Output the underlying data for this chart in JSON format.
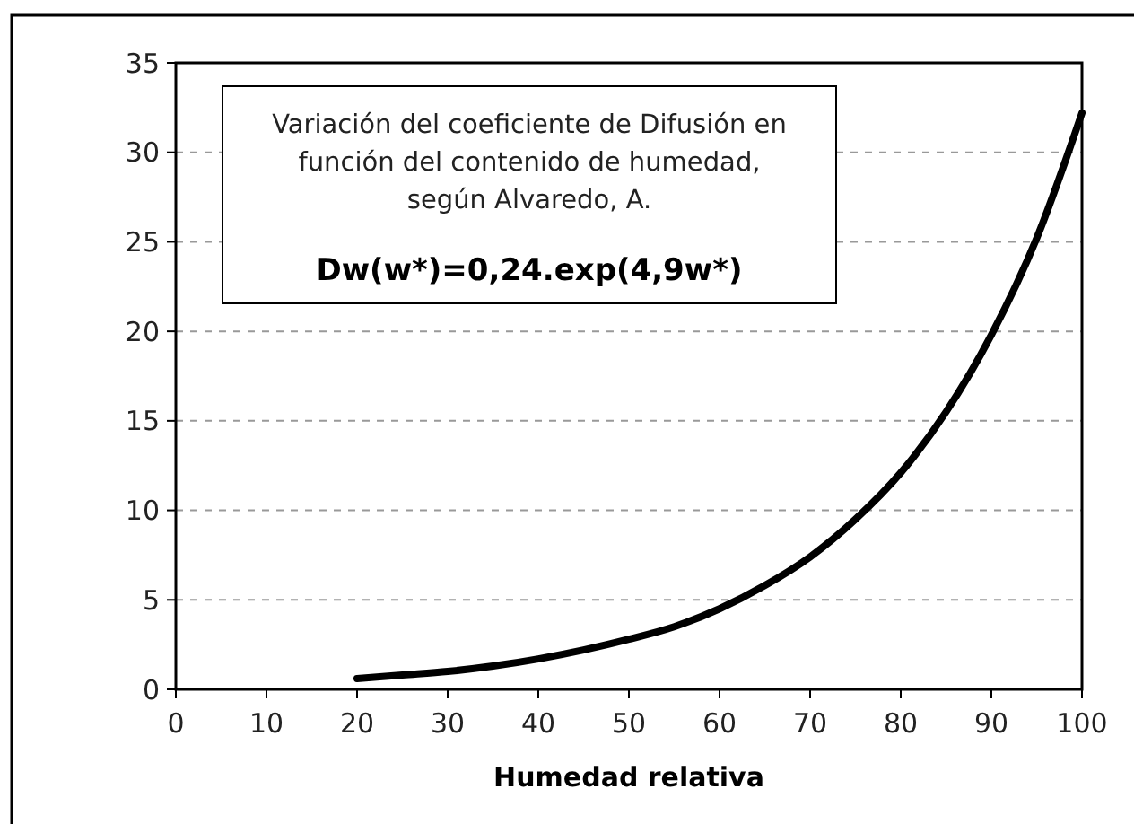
{
  "chart_data": {
    "type": "line",
    "xlabel": "Humedad relativa",
    "annotations": [
      "Variación del coeficiente de Difusión en función del contenido de humedad, según Alvaredo, A.",
      "Dw(w*)=0,24.exp(4,9w*)"
    ],
    "x": [
      20,
      25,
      30,
      35,
      40,
      45,
      50,
      55,
      60,
      65,
      70,
      75,
      80,
      85,
      90,
      95,
      100
    ],
    "series": [
      {
        "color": "#000000",
        "values": [
          0.6,
          0.8,
          1.0,
          1.3,
          1.7,
          2.2,
          2.8,
          3.5,
          4.5,
          5.8,
          7.4,
          9.5,
          12.1,
          15.5,
          19.8,
          25.2,
          32.2
        ]
      }
    ],
    "xlim": [
      0,
      100
    ],
    "xticks": [
      0,
      10,
      20,
      30,
      40,
      50,
      60,
      70,
      80,
      90,
      100
    ],
    "ylim": [
      0,
      35
    ],
    "yticks": [
      0,
      5,
      10,
      15,
      20,
      25,
      30,
      35
    ],
    "grid": "y",
    "marker": "none",
    "line_style": "solid"
  }
}
